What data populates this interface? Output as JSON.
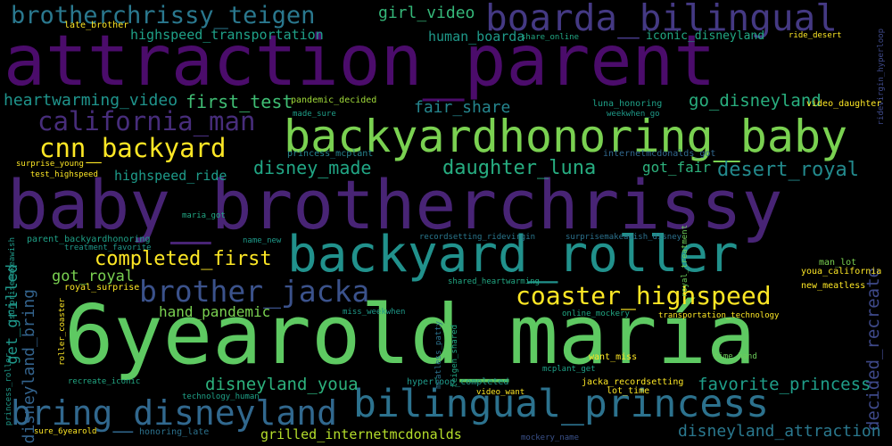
{
  "background": "#000000",
  "words": [
    {
      "text": "attraction_parent",
      "color": "#4b0c6b"
    },
    {
      "text": "baby_brotherchrissy",
      "color": "#482475"
    },
    {
      "text": "6yearold_maría",
      "color": "#5ec962"
    },
    {
      "text": "backyardhonoring_baby",
      "color": "#7ad151"
    },
    {
      "text": "backyard_roller",
      "color": "#21918c"
    },
    {
      "text": "boarda_bilingual",
      "color": "#443983"
    },
    {
      "text": "brotherchrissy_teigen",
      "color": "#2a788e"
    },
    {
      "text": "bilingual_princess",
      "color": "#2c728e"
    },
    {
      "text": "bring_disneyland",
      "color": "#31688e"
    },
    {
      "text": "brother_jacka",
      "color": "#3b528b"
    },
    {
      "text": "california_man",
      "color": "#472d7b"
    },
    {
      "text": "cnn_backyard",
      "color": "#fde725"
    },
    {
      "text": "coaster_highspeed",
      "color": "#fde725"
    },
    {
      "text": "completed_first",
      "color": "#fde725"
    },
    {
      "text": "disney_made",
      "color": "#21a685"
    },
    {
      "text": "daughter_luna",
      "color": "#27ad81"
    },
    {
      "text": "desert_royal",
      "color": "#238a8d"
    },
    {
      "text": "first_test",
      "color": "#3fbc73"
    },
    {
      "text": "fair_share",
      "color": "#25858e"
    },
    {
      "text": "go_disneyland",
      "color": "#29af7f"
    },
    {
      "text": "girl_video",
      "color": "#35b779"
    },
    {
      "text": "heartwarming_video",
      "color": "#1f948c"
    },
    {
      "text": "highspeed_transportation",
      "color": "#1fa188"
    },
    {
      "text": "highspeed_ride",
      "color": "#1e9b8a"
    },
    {
      "text": "human_boarda",
      "color": "#1f9a8a"
    },
    {
      "text": "iconic_disneyland",
      "color": "#22a884"
    },
    {
      "text": "got_fair",
      "color": "#2db27d"
    },
    {
      "text": "got_royal",
      "color": "#7ad151"
    },
    {
      "text": "hand_pandemic",
      "color": "#7ad151"
    },
    {
      "text": "disneyland_bring",
      "color": "#33638d"
    },
    {
      "text": "get_grilled",
      "color": "#1f988b"
    },
    {
      "text": "disneyland_youa",
      "color": "#2db27d"
    },
    {
      "text": "favorite_princess",
      "color": "#1f9e89"
    },
    {
      "text": "decided_recreate",
      "color": "#3e4989"
    },
    {
      "text": "disneyland_attraction",
      "color": "#2a788e"
    },
    {
      "text": "grilled_internetmcdonalds",
      "color": "#b5de2b"
    },
    {
      "text": "late_brother",
      "color": "#fde725"
    },
    {
      "text": "share_online",
      "color": "#22a884"
    },
    {
      "text": "ride_desert",
      "color": "#fde725"
    },
    {
      "text": "ridevirgin_hyperloop",
      "color": "#3e4989"
    },
    {
      "text": "pandemic_decided",
      "color": "#a0da39"
    },
    {
      "text": "made_sure",
      "color": "#1f9e89"
    },
    {
      "text": "video_daughter",
      "color": "#fde725"
    },
    {
      "text": "luna_honoring",
      "color": "#1fa188"
    },
    {
      "text": "weekwhen_go",
      "color": "#1f9a8a"
    },
    {
      "text": "princess_mcplant",
      "color": "#26828e"
    },
    {
      "text": "internetmcdonalds_got",
      "color": "#31688e"
    },
    {
      "text": "surprise_young",
      "color": "#fde725"
    },
    {
      "text": "test_highspeed",
      "color": "#fde725"
    },
    {
      "text": "maria_got",
      "color": "#22a884"
    },
    {
      "text": "parent_backyardhonoring",
      "color": "#1fa188"
    },
    {
      "text": "treatment_favorite",
      "color": "#1f988b"
    },
    {
      "text": "name_new",
      "color": "#1f9a8a"
    },
    {
      "text": "recordsetting_ridevirgin",
      "color": "#2a788e"
    },
    {
      "text": "surprisemakeawish_disney",
      "color": "#2c728e"
    },
    {
      "text": "royal_treatment",
      "color": "#6ccd5a"
    },
    {
      "text": "man_lot",
      "color": "#7ad151"
    },
    {
      "text": "youa_california",
      "color": "#fde725"
    },
    {
      "text": "new_meatless",
      "color": "#fde725"
    },
    {
      "text": "royal_surprise",
      "color": "#fde725"
    },
    {
      "text": "surprisemakeawish",
      "color": "#1f9a8a"
    },
    {
      "text": "shared_heartwarming",
      "color": "#22a884"
    },
    {
      "text": "miss_weekwhen",
      "color": "#1f9a8a"
    },
    {
      "text": "online_mockery",
      "color": "#22a884"
    },
    {
      "text": "transportation_technology",
      "color": "#fde725"
    },
    {
      "text": "princess_roller",
      "color": "#1f9a8a"
    },
    {
      "text": "roller_coaster",
      "color": "#fde725"
    },
    {
      "text": "meatless_patty",
      "color": "#2c728e"
    },
    {
      "text": "teigen_shared",
      "color": "#22a884"
    },
    {
      "text": "want_miss",
      "color": "#fde725"
    },
    {
      "text": "mcplant_get",
      "color": "#1fa188"
    },
    {
      "text": "time_hand",
      "color": "#6ccd5a"
    },
    {
      "text": "hyperloop_completed",
      "color": "#1f9a8a"
    },
    {
      "text": "jacka_recordsetting",
      "color": "#fde725"
    },
    {
      "text": "lot_time",
      "color": "#fde725"
    },
    {
      "text": "video_want",
      "color": "#fde725"
    },
    {
      "text": "recreate_iconic",
      "color": "#22a884"
    },
    {
      "text": "technology_human",
      "color": "#1fa188"
    },
    {
      "text": "sure_6yearold",
      "color": "#fde725"
    },
    {
      "text": "honoring_late",
      "color": "#2c728e"
    },
    {
      "text": "mockery_name",
      "color": "#3b528b"
    }
  ]
}
